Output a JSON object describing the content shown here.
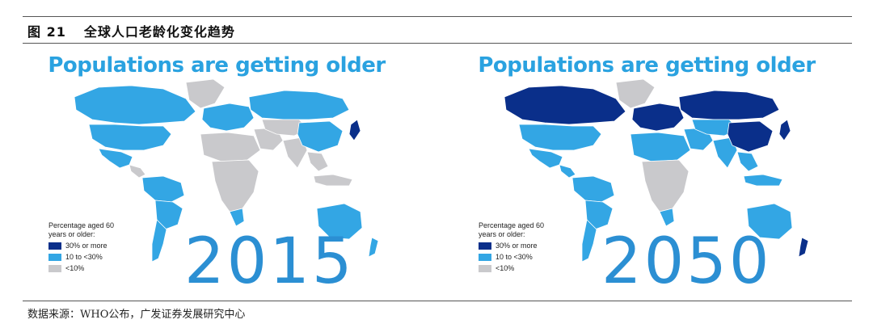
{
  "figure": {
    "number": "图 21",
    "title": "全球人口老龄化变化趋势"
  },
  "colors": {
    "high": "#0a2f8a",
    "mid": "#33a6e4",
    "low": "#c9c9cc",
    "title_blue": "#2aa2e0",
    "year_blue": "#2b8fd3"
  },
  "maps": [
    {
      "title": "Populations are getting older",
      "year": "2015",
      "legend": {
        "heading": "Percentage aged 60 years or older:",
        "items": [
          {
            "label": "30% or more",
            "color": "#0a2f8a"
          },
          {
            "label": "10 to <30%",
            "color": "#33a6e4"
          },
          {
            "label": "<10%",
            "color": "#c9c9cc"
          }
        ]
      },
      "regions": {
        "canada": "mid",
        "usa": "mid",
        "mexico": "mid",
        "central_america": "low",
        "greenland": "low",
        "south_america_north": "mid",
        "south_america_central": "mid",
        "south_america_south": "mid",
        "europe": "mid",
        "russia": "mid",
        "north_africa": "low",
        "sub_saharan_africa": "low",
        "south_africa": "mid",
        "middle_east": "low",
        "central_asia": "low",
        "india": "low",
        "china": "mid",
        "japan": "high",
        "southeast_asia": "low",
        "indonesia": "low",
        "australia": "mid",
        "new_zealand": "mid"
      }
    },
    {
      "title": "Populations are getting older",
      "year": "2050",
      "legend": {
        "heading": "Percentage aged 60 years or older:",
        "items": [
          {
            "label": "30% or more",
            "color": "#0a2f8a"
          },
          {
            "label": "10 to <30%",
            "color": "#33a6e4"
          },
          {
            "label": "<10%",
            "color": "#c9c9cc"
          }
        ]
      },
      "regions": {
        "canada": "high",
        "usa": "mid",
        "mexico": "mid",
        "central_america": "mid",
        "greenland": "low",
        "south_america_north": "mid",
        "south_america_central": "mid",
        "south_america_south": "mid",
        "europe": "high",
        "russia": "high",
        "north_africa": "mid",
        "sub_saharan_africa": "low",
        "south_africa": "mid",
        "middle_east": "mid",
        "central_asia": "mid",
        "india": "mid",
        "china": "high",
        "japan": "high",
        "southeast_asia": "mid",
        "indonesia": "mid",
        "australia": "mid",
        "new_zealand": "high"
      }
    }
  ],
  "source": "数据来源：WHO公布，广发证券发展研究中心"
}
